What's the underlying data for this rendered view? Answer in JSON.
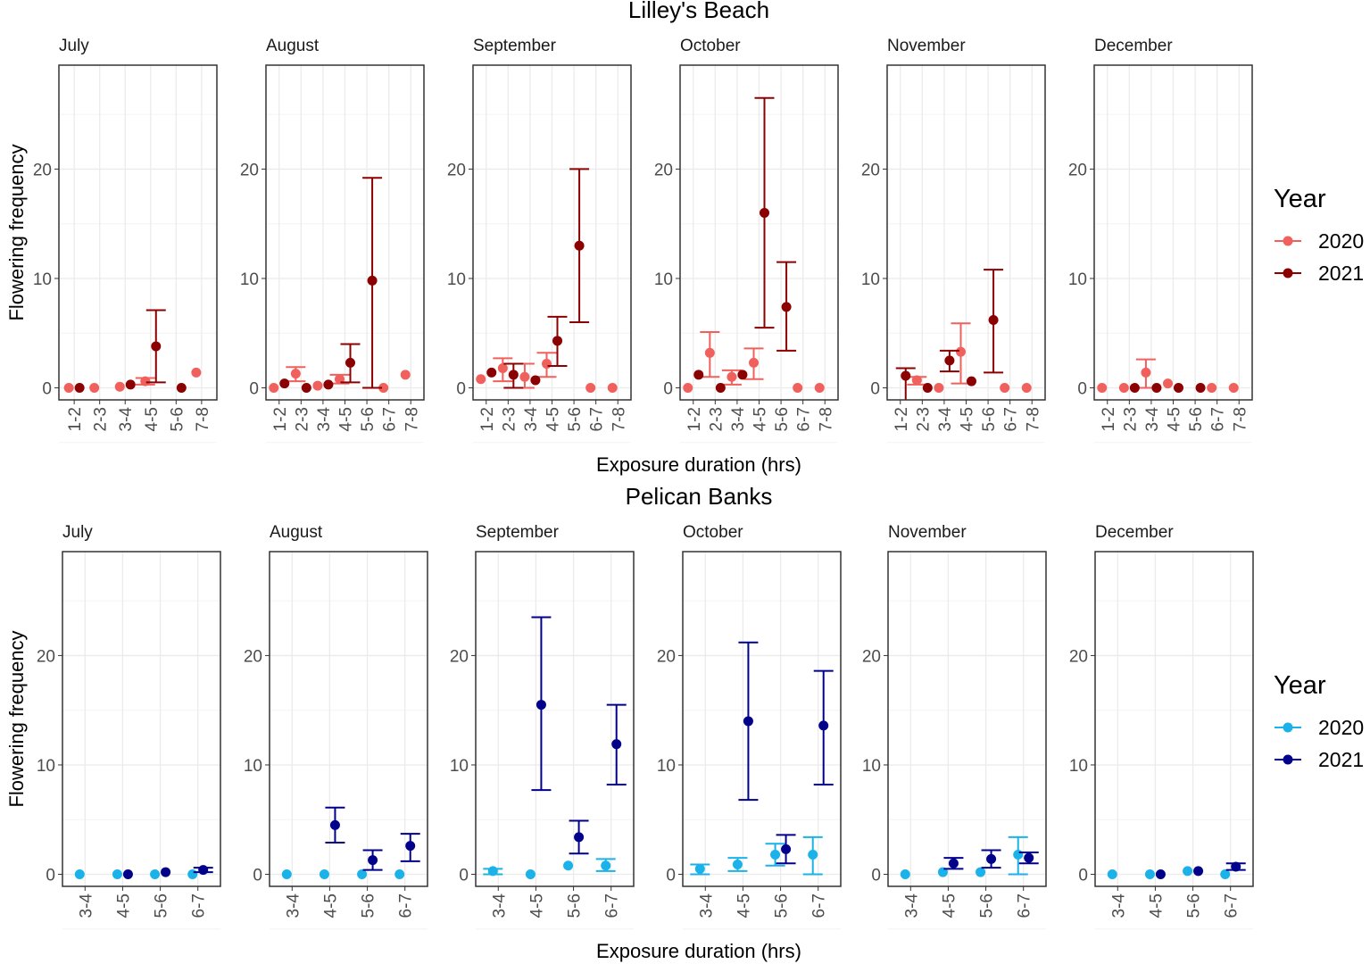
{
  "chart_data": [
    {
      "type": "scatter",
      "title": "Lilley's Beach",
      "xlabel": "Exposure duration (hrs)",
      "ylabel": "Flowering frequency",
      "ylim": [
        -1.1,
        29.5
      ],
      "yticks": [
        0,
        10,
        20
      ],
      "grid": true,
      "legend": {
        "title": "Year",
        "placement": "right",
        "entries": [
          "2020",
          "2021"
        ],
        "colors": [
          "#F0605D",
          "#8B0000"
        ]
      },
      "panels": [
        {
          "month": "July",
          "categories": [
            "1-2",
            "2-3",
            "3-4",
            "4-5",
            "5-6",
            "7-8"
          ],
          "series": [
            {
              "name": "2020",
              "values": [
                0,
                0,
                0.1,
                0.6,
                null,
                1.4
              ],
              "lo": [
                0,
                0,
                0.1,
                0.3,
                null,
                1.4
              ],
              "hi": [
                0,
                0,
                0.1,
                0.9,
                null,
                1.4
              ]
            },
            {
              "name": "2021",
              "values": [
                0,
                null,
                0.3,
                3.8,
                0,
                null
              ],
              "lo": [
                0,
                null,
                0.3,
                0.5,
                0,
                null
              ],
              "hi": [
                0,
                null,
                0.3,
                7.1,
                0,
                null
              ]
            }
          ]
        },
        {
          "month": "August",
          "categories": [
            "1-2",
            "2-3",
            "3-4",
            "4-5",
            "5-6",
            "6-7",
            "7-8"
          ],
          "series": [
            {
              "name": "2020",
              "values": [
                0,
                1.3,
                0.2,
                0.8,
                null,
                0,
                1.2
              ],
              "lo": [
                0,
                0.6,
                0.2,
                0.4,
                null,
                0,
                1.2
              ],
              "hi": [
                0,
                1.9,
                0.2,
                1.2,
                null,
                0,
                1.2
              ]
            },
            {
              "name": "2021",
              "values": [
                0.4,
                0,
                0.3,
                2.3,
                9.8,
                null,
                null
              ],
              "lo": [
                0.4,
                0,
                0.3,
                0.5,
                0,
                null,
                null
              ],
              "hi": [
                0.4,
                0,
                0.3,
                4.0,
                19.2,
                null,
                null
              ]
            }
          ]
        },
        {
          "month": "September",
          "categories": [
            "1-2",
            "2-3",
            "3-4",
            "4-5",
            "5-6",
            "6-7",
            "7-8"
          ],
          "series": [
            {
              "name": "2020",
              "values": [
                0.8,
                1.8,
                1.0,
                2.2,
                null,
                0,
                0
              ],
              "lo": [
                0.8,
                0.6,
                0,
                1.0,
                null,
                0,
                0
              ],
              "hi": [
                0.8,
                2.7,
                2.2,
                3.2,
                null,
                0,
                0
              ]
            },
            {
              "name": "2021",
              "values": [
                1.4,
                1.2,
                0.7,
                4.3,
                13,
                null,
                null
              ],
              "lo": [
                1.4,
                0,
                0.7,
                2.0,
                6.0,
                null,
                null
              ],
              "hi": [
                1.4,
                2.2,
                0.7,
                6.5,
                20,
                null,
                null
              ]
            }
          ]
        },
        {
          "month": "October",
          "categories": [
            "1-2",
            "2-3",
            "3-4",
            "4-5",
            "5-6",
            "6-7",
            "7-8"
          ],
          "series": [
            {
              "name": "2020",
              "values": [
                0,
                3.2,
                1.0,
                2.3,
                null,
                0,
                0
              ],
              "lo": [
                0,
                1.0,
                0.3,
                0.8,
                null,
                0,
                0
              ],
              "hi": [
                0,
                5.1,
                1.6,
                3.6,
                null,
                0,
                0
              ]
            },
            {
              "name": "2021",
              "values": [
                1.2,
                0,
                1.2,
                16,
                7.4,
                null,
                null
              ],
              "lo": [
                1.2,
                0,
                1.2,
                5.5,
                3.4,
                null,
                null
              ],
              "hi": [
                1.2,
                0,
                1.2,
                26.5,
                11.5,
                null,
                null
              ]
            }
          ]
        },
        {
          "month": "November",
          "categories": [
            "1-2",
            "2-3",
            "3-4",
            "4-5",
            "5-6",
            "6-7",
            "7-8"
          ],
          "series": [
            {
              "name": "2020",
              "values": [
                null,
                0.7,
                0,
                3.3,
                null,
                0,
                0
              ],
              "lo": [
                null,
                0.3,
                0,
                0.4,
                null,
                0,
                0
              ],
              "hi": [
                null,
                1.0,
                0,
                5.9,
                null,
                0,
                0
              ]
            },
            {
              "name": "2021",
              "values": [
                1.1,
                0,
                2.5,
                0.6,
                6.2,
                null,
                null
              ],
              "lo": [
                -2,
                0,
                1.5,
                0.6,
                1.4,
                null,
                null
              ],
              "hi": [
                1.8,
                0,
                3.4,
                0.6,
                10.8,
                null,
                null
              ]
            }
          ]
        },
        {
          "month": "December",
          "categories": [
            "1-2",
            "2-3",
            "3-4",
            "4-5",
            "5-6",
            "6-7",
            "7-8"
          ],
          "series": [
            {
              "name": "2020",
              "values": [
                0,
                0,
                1.4,
                0.4,
                null,
                0,
                0
              ],
              "lo": [
                0,
                0,
                0,
                0.4,
                null,
                0,
                0
              ],
              "hi": [
                0,
                0,
                2.6,
                0.4,
                null,
                0,
                0
              ]
            },
            {
              "name": "2021",
              "values": [
                null,
                0,
                0,
                0,
                0,
                null,
                null
              ],
              "lo": [
                null,
                0,
                0,
                0,
                0,
                null,
                null
              ],
              "hi": [
                null,
                0,
                0,
                0,
                0,
                null,
                null
              ]
            }
          ]
        }
      ]
    },
    {
      "type": "scatter",
      "title": "Pelican Banks",
      "xlabel": "Exposure duration (hrs)",
      "ylabel": "Flowering frequency",
      "ylim": [
        -1.1,
        29.5
      ],
      "yticks": [
        0,
        10,
        20
      ],
      "grid": true,
      "legend": {
        "title": "Year",
        "placement": "right",
        "entries": [
          "2020",
          "2021"
        ],
        "colors": [
          "#1AB2E8",
          "#00008B"
        ]
      },
      "panels": [
        {
          "month": "July",
          "categories": [
            "3-4",
            "4-5",
            "5-6",
            "6-7"
          ],
          "series": [
            {
              "name": "2020",
              "values": [
                0,
                0,
                0,
                0
              ],
              "lo": [
                0,
                0,
                0,
                0
              ],
              "hi": [
                0,
                0,
                0,
                0
              ]
            },
            {
              "name": "2021",
              "values": [
                null,
                0,
                0.2,
                0.4
              ],
              "lo": [
                null,
                0,
                0.2,
                0.2
              ],
              "hi": [
                null,
                0,
                0.2,
                0.6
              ]
            }
          ]
        },
        {
          "month": "August",
          "categories": [
            "3-4",
            "4-5",
            "5-6",
            "6-7"
          ],
          "series": [
            {
              "name": "2020",
              "values": [
                0,
                0,
                0,
                0
              ],
              "lo": [
                0,
                0,
                0,
                0
              ],
              "hi": [
                0,
                0,
                0,
                0
              ]
            },
            {
              "name": "2021",
              "values": [
                null,
                4.5,
                1.3,
                2.6
              ],
              "lo": [
                null,
                2.9,
                0.4,
                1.2
              ],
              "hi": [
                null,
                6.1,
                2.2,
                3.7
              ]
            }
          ]
        },
        {
          "month": "September",
          "categories": [
            "3-4",
            "4-5",
            "5-6",
            "6-7"
          ],
          "series": [
            {
              "name": "2020",
              "values": [
                0.3,
                0,
                0.8,
                0.8
              ],
              "lo": [
                0,
                0,
                0.8,
                0.3
              ],
              "hi": [
                0.5,
                0,
                0.8,
                1.4
              ]
            },
            {
              "name": "2021",
              "values": [
                null,
                15.5,
                3.4,
                11.9
              ],
              "lo": [
                null,
                7.7,
                1.9,
                8.2
              ],
              "hi": [
                null,
                23.5,
                4.9,
                15.5
              ]
            }
          ]
        },
        {
          "month": "October",
          "categories": [
            "3-4",
            "4-5",
            "5-6",
            "6-7"
          ],
          "series": [
            {
              "name": "2020",
              "values": [
                0.5,
                0.9,
                1.8,
                1.8
              ],
              "lo": [
                0,
                0.3,
                0.8,
                0
              ],
              "hi": [
                0.9,
                1.5,
                2.8,
                3.4
              ]
            },
            {
              "name": "2021",
              "values": [
                null,
                14,
                2.3,
                13.6
              ],
              "lo": [
                null,
                6.8,
                1.0,
                8.2
              ],
              "hi": [
                null,
                21.2,
                3.6,
                18.6
              ]
            }
          ]
        },
        {
          "month": "November",
          "categories": [
            "3-4",
            "4-5",
            "5-6",
            "6-7"
          ],
          "series": [
            {
              "name": "2020",
              "values": [
                0,
                0.2,
                0.2,
                1.8
              ],
              "lo": [
                0,
                0.2,
                0.2,
                0
              ],
              "hi": [
                0,
                0.2,
                0.2,
                3.4
              ]
            },
            {
              "name": "2021",
              "values": [
                null,
                1.0,
                1.4,
                1.5
              ],
              "lo": [
                null,
                0.5,
                0.6,
                1.0
              ],
              "hi": [
                null,
                1.5,
                2.2,
                2.0
              ]
            }
          ]
        },
        {
          "month": "December",
          "categories": [
            "3-4",
            "4-5",
            "5-6",
            "6-7"
          ],
          "series": [
            {
              "name": "2020",
              "values": [
                0,
                0,
                0.3,
                0
              ],
              "lo": [
                0,
                0,
                0.3,
                0
              ],
              "hi": [
                0,
                0,
                0.3,
                0
              ]
            },
            {
              "name": "2021",
              "values": [
                null,
                0,
                0.3,
                0.7
              ],
              "lo": [
                null,
                0,
                0.3,
                0.4
              ],
              "hi": [
                null,
                0,
                0.3,
                1.0
              ]
            }
          ]
        }
      ]
    }
  ]
}
